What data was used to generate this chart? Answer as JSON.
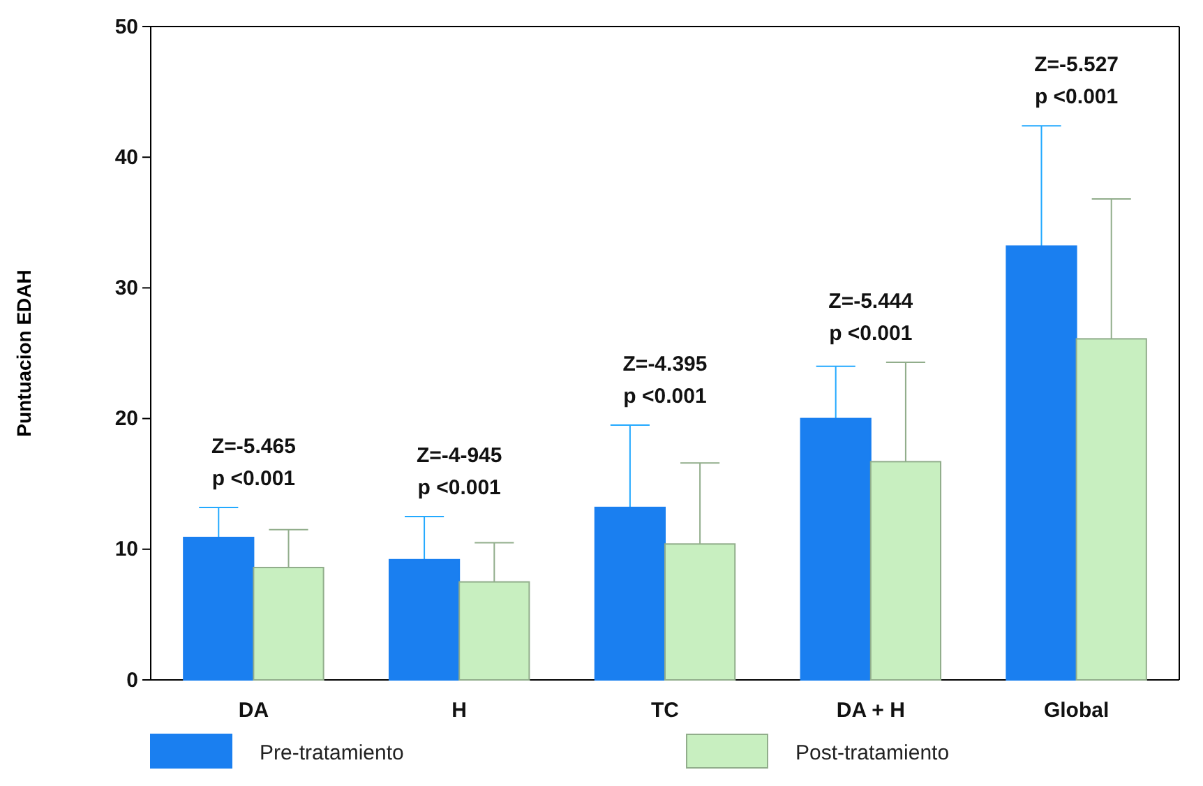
{
  "chart_data": {
    "type": "bar",
    "ylabel": "Puntuacion EDAH",
    "categories": [
      "DA",
      "H",
      "TC",
      "DA + H",
      "Global"
    ],
    "series": [
      {
        "name": "Pre-tratamiento",
        "color": "#1a7ff0",
        "values": [
          10.9,
          9.2,
          13.2,
          20.0,
          33.2
        ],
        "errors": [
          [
            10.9,
            13.2
          ],
          [
            9.2,
            12.5
          ],
          [
            13.2,
            19.5
          ],
          [
            20.0,
            24.0
          ],
          [
            33.2,
            42.4
          ]
        ]
      },
      {
        "name": "Post-tratamiento",
        "color": "#c8efc0",
        "values": [
          8.6,
          7.5,
          10.4,
          16.7,
          26.1
        ],
        "errors": [
          [
            8.6,
            11.5
          ],
          [
            7.5,
            10.5
          ],
          [
            10.4,
            16.6
          ],
          [
            16.7,
            24.3
          ],
          [
            26.1,
            36.8
          ]
        ]
      }
    ],
    "ylim": [
      0,
      50
    ],
    "yticks": [
      0,
      10,
      20,
      30,
      40,
      50
    ],
    "grid": false,
    "legend": "bottom",
    "annotations": [
      "Z=-5.465\np <0.001",
      "Z=-4-945\np <0.001",
      "Z=-4.395\np <0.001",
      "Z=-5.444\np <0.001",
      "Z=-5.527\np <0.001"
    ]
  }
}
